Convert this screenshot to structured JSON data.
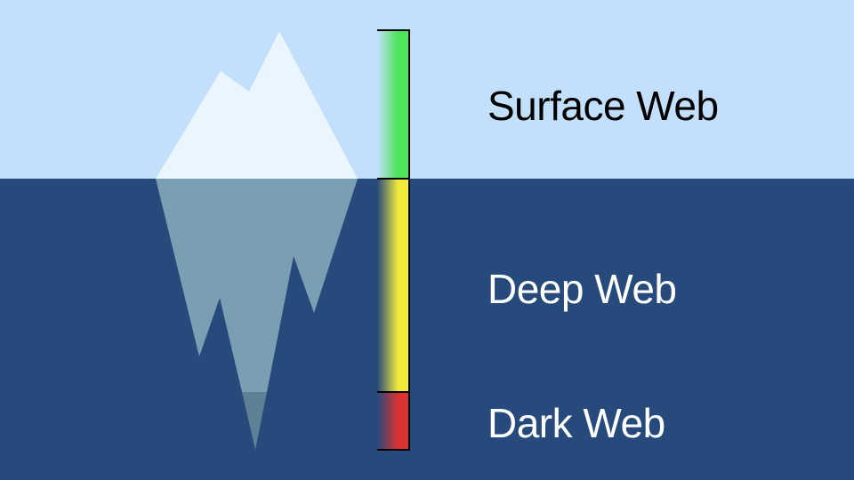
{
  "colors": {
    "sky": "#c2e0fb",
    "water": "#274a7c",
    "ice_above": "#eaf5fd",
    "ice_below": "#7a9fb3",
    "ice_tip": "#5e8195",
    "surface_text": "#000000",
    "deep_text": "#ffffff",
    "surface_bar": "#4de35a",
    "deep_bar": "#f0ea3a",
    "dark_bar": "#d93232"
  },
  "layers": [
    {
      "name": "Surface Web",
      "color": "#4de35a"
    },
    {
      "name": "Deep Web",
      "color": "#f0ea3a"
    },
    {
      "name": "Dark Web",
      "color": "#d93232"
    }
  ]
}
